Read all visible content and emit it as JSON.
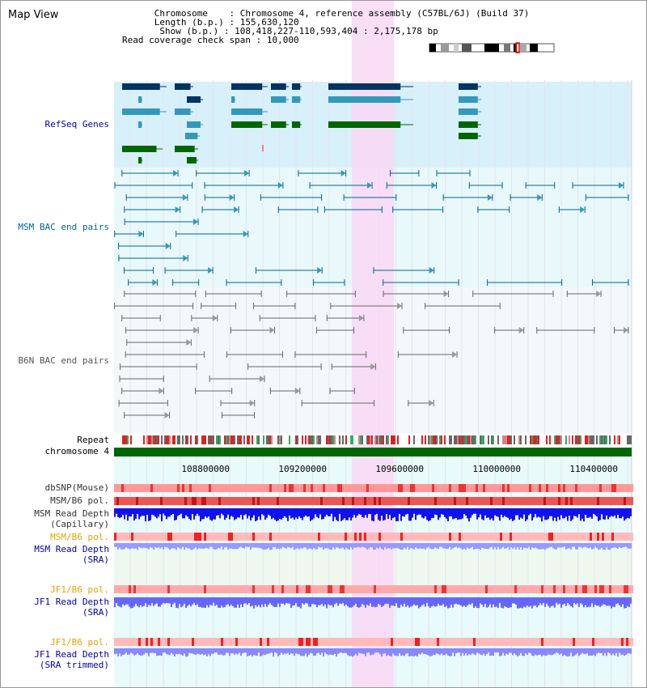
{
  "title": "Map View",
  "header": {
    "chromosome_label": "Chromosome",
    "chromosome_value": "Chromosome 4, reference assembly (C57BL/6J) (Build 37)",
    "length_label": "Length (b.p.)",
    "length_value": "155,630,120",
    "show_label": "Show (b.p.)",
    "show_value": "108,418,227-110,593,404 : 2,175,178 bp",
    "span_label": "Read coverage check span",
    "span_value": "10,000"
  },
  "axis": {
    "ticks": [
      "108800000",
      "109200000",
      "109600000",
      "110000000",
      "110400000"
    ]
  },
  "tracks": {
    "refseq": "RefSeq Genes",
    "msm_bac": "MSM BAC end pairs",
    "b6n_bac": "B6N BAC end pairs",
    "repeat": "Repeat",
    "chromosome": "chromosome 4",
    "dbsnp": "dbSNP(Mouse)",
    "msm_b6_pol": "MSM/B6 pol.",
    "msm_depth_cap_1": "MSM Read Depth",
    "msm_depth_cap_2": "(Capillary)",
    "msm_b6_pol_2": "MSM/B6 pol.",
    "msm_depth_sra_1": "MSM Read Depth",
    "msm_depth_sra_2": "(SRA)",
    "jf1_b6_pol": "JF1/B6 pol.",
    "jf1_depth_sra_1": "JF1 Read Depth",
    "jf1_depth_sra_2": "(SRA)",
    "jf1_b6_pol_2": "JF1/B6 pol.",
    "jf1_depth_trim_1": "JF1 Read Depth",
    "jf1_depth_trim_2": "(SRA trimmed)"
  },
  "colors": {
    "highlight": "#f9d8f5",
    "refseq_bg": "#d8f0fa",
    "msm_bg": "#e8f8fb",
    "b6n_bg": "#f4f8fb",
    "refseq_label": "#0000aa",
    "msm_label": "#006688",
    "b6n_label": "#555555",
    "pol_orange": "#e8a000",
    "depth_blue": "#0000aa",
    "chrom_green": "#006600"
  }
}
